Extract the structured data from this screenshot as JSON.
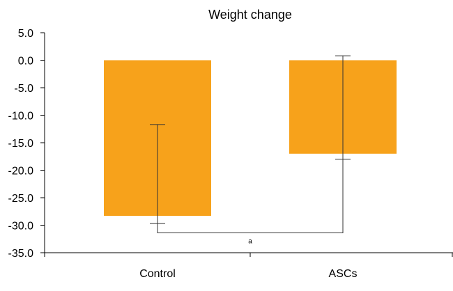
{
  "chart_data": {
    "type": "bar",
    "title": "Weight change",
    "xlabel": "",
    "ylabel": "",
    "categories": [
      "Control",
      "ASCs"
    ],
    "values": [
      -28.3,
      -17.0
    ],
    "error_low": [
      -29.7,
      -18.0
    ],
    "error_high": [
      -11.7,
      0.8
    ],
    "ylim": [
      -35.0,
      5.0
    ],
    "yticks": [
      "5.0",
      "0.0",
      "-5.0",
      "-10.0",
      "-15.0",
      "-20.0",
      "-25.0",
      "-30.0",
      "-35.0"
    ],
    "ytick_values": [
      5,
      0,
      -5,
      -10,
      -15,
      -20,
      -25,
      -30,
      -35
    ],
    "bar_color": "#F7A21B",
    "significance": {
      "label": "a",
      "between": [
        "Control",
        "ASCs"
      ],
      "y": -31.4
    },
    "grid": false,
    "legend": "none"
  }
}
